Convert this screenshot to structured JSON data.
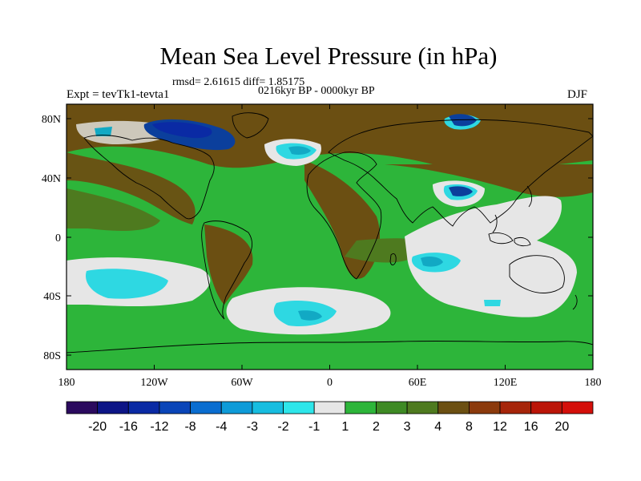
{
  "title": "Mean Sea Level Pressure (in hPa)",
  "stats_line": "rmsd= 2.61615 diff= 1.85175",
  "period_line": "0216kyr BP - 0000kyr BP",
  "experiment": "Expt = tevTk1-tevta1",
  "season": "DJF",
  "colors": {
    "background_positive": "#2db53a",
    "strong_positive": "#6b4f12",
    "mid_positive": "#4e7a1f",
    "neutral": "#e6e6e6",
    "weak_negative": "#2ed8e2",
    "mid_negative": "#12a9c4",
    "strong_negative": "#0b3f9c",
    "coast": "#000000"
  },
  "lat_labels": [
    "80N",
    "40N",
    "0",
    "40S",
    "80S"
  ],
  "lon_labels": [
    "180",
    "120W",
    "60W",
    "0",
    "60E",
    "120E",
    "180"
  ],
  "colorbar": {
    "labels": [
      "-20",
      "-16",
      "-12",
      "-8",
      "-4",
      "-3",
      "-2",
      "-1",
      "1",
      "2",
      "3",
      "4",
      "8",
      "12",
      "16",
      "20"
    ],
    "colors": [
      "#2b0a5e",
      "#0d1586",
      "#0a2aa4",
      "#0a45b8",
      "#0a6dd0",
      "#0e9bd8",
      "#17bde0",
      "#2ee6ea",
      "#e6e6e6",
      "#2db53a",
      "#3e8a24",
      "#4e7a1f",
      "#6b4f12",
      "#8b3a0c",
      "#a6250a",
      "#bb1508",
      "#d40f0a"
    ]
  }
}
